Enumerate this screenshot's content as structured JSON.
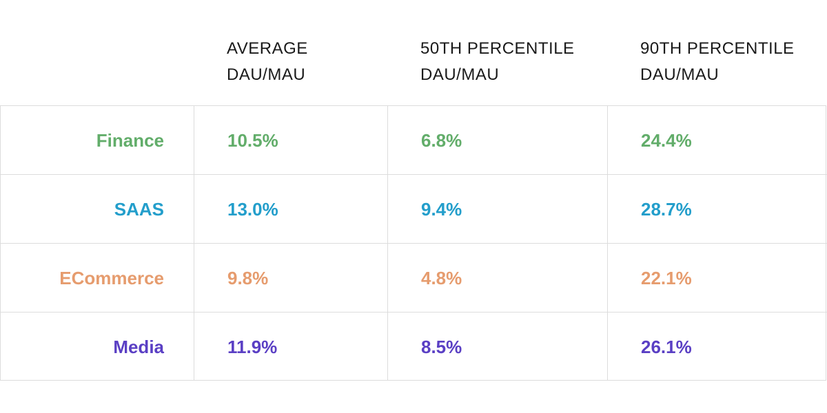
{
  "chart_data": {
    "type": "table",
    "columns": [
      {
        "line1": "AVERAGE",
        "line2": "DAU/MAU"
      },
      {
        "line1": "50TH PERCENTILE",
        "line2": "DAU/MAU"
      },
      {
        "line1": "90TH PERCENTILE",
        "line2": "DAU/MAU"
      }
    ],
    "rows": [
      {
        "label": "Finance",
        "color": "#62ad6a",
        "values": [
          "10.5%",
          "6.8%",
          "24.4%"
        ]
      },
      {
        "label": "SAAS",
        "color": "#239ecb",
        "values": [
          "13.0%",
          "9.4%",
          "28.7%"
        ]
      },
      {
        "label": "ECommerce",
        "color": "#e69c6e",
        "values": [
          "9.8%",
          "4.8%",
          "22.1%"
        ]
      },
      {
        "label": "Media",
        "color": "#5a3fc4",
        "values": [
          "11.9%",
          "8.5%",
          "26.1%"
        ]
      }
    ]
  }
}
